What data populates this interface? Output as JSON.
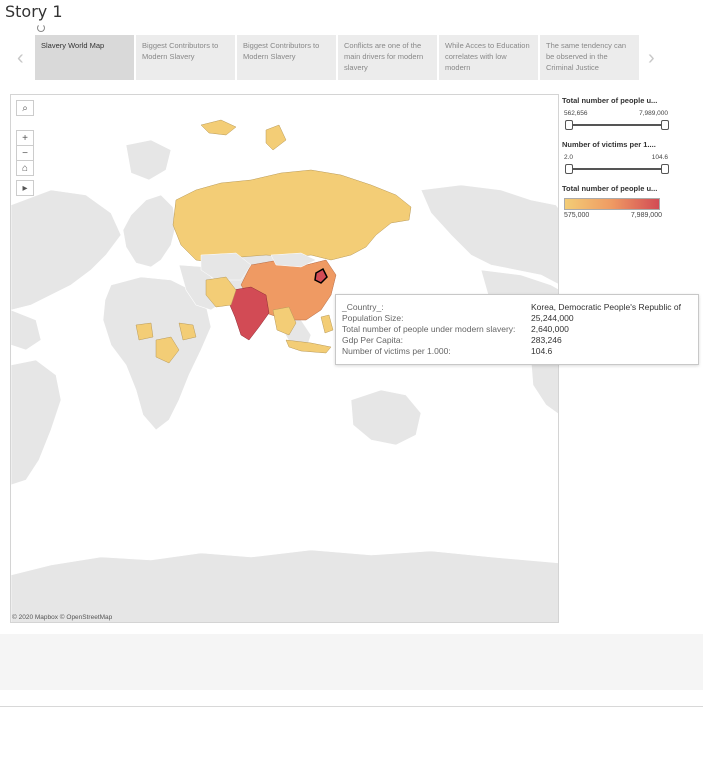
{
  "story": {
    "title": "Story 1"
  },
  "tabs": [
    {
      "label": "Slavery World Map",
      "active": true
    },
    {
      "label": "Biggest Contributors to Modern Slavery",
      "active": false
    },
    {
      "label": "Biggest Contributors to Modern Slavery",
      "active": false
    },
    {
      "label": "Conflicts are one of the main drivers for modern slavery",
      "active": false
    },
    {
      "label": "While Acces to Education correlates with low modern",
      "active": false
    },
    {
      "label": "The same tendency can be observed in the Criminal Justice",
      "active": false
    }
  ],
  "nav": {
    "prev_icon": "‹",
    "next_icon": "›"
  },
  "map": {
    "attribution": "© 2020 Mapbox © OpenStreetMap",
    "tools": {
      "search": "⌕",
      "zoom_in": "+",
      "zoom_out": "−",
      "home": "⌂",
      "play": "▸"
    },
    "colors": {
      "land": "#e6e6e6",
      "ocean": "#ffffff",
      "low": "#f3cd76",
      "mid": "#ef9a63",
      "high": "#d24b55"
    }
  },
  "filters": {
    "total_people": {
      "title": "Total number of people u...",
      "min": "562,656",
      "max": "7,989,000"
    },
    "victims_per_1000": {
      "title": "Number of victims per 1....",
      "min": "2.0",
      "max": "104.6"
    },
    "legend": {
      "title": "Total number of people u...",
      "min": "575,000",
      "max": "7,989,000"
    }
  },
  "tooltip": {
    "rows": [
      {
        "label": "_Country_:",
        "value": "Korea, Democratic People's Republic of"
      },
      {
        "label": "Population Size:",
        "value": "25,244,000"
      },
      {
        "label": "Total number of people under modern slavery:",
        "value": "2,640,000"
      },
      {
        "label": "Gdp Per Capita:",
        "value": "283,246"
      },
      {
        "label": "Number of victims per 1.000:",
        "value": "104.6"
      }
    ]
  }
}
